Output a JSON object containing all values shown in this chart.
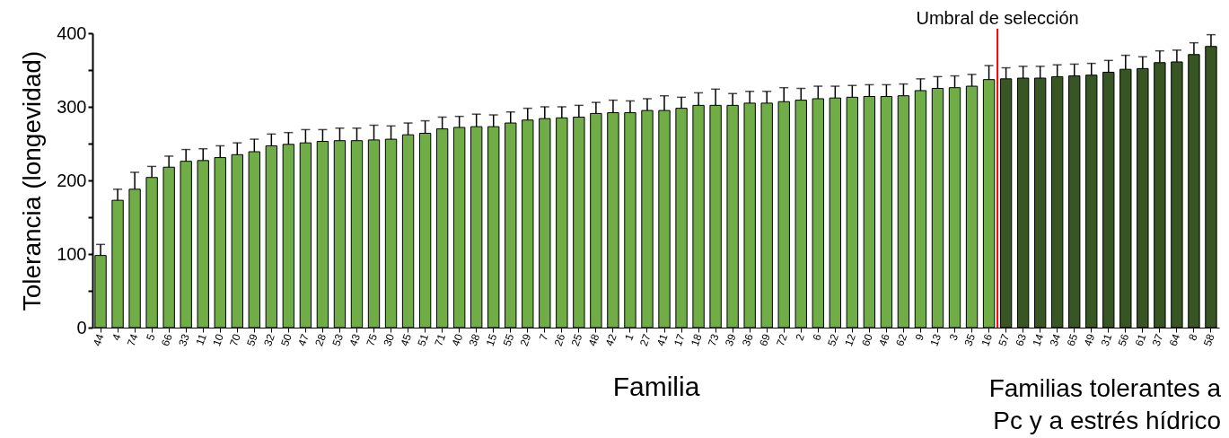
{
  "chart_data": {
    "type": "bar",
    "ylabel": "Tolerancia (longevidad)",
    "xlabel": "Familia",
    "categories": [
      "44",
      "4",
      "74",
      "5",
      "66",
      "33",
      "11",
      "10",
      "70",
      "59",
      "32",
      "50",
      "47",
      "28",
      "53",
      "43",
      "75",
      "30",
      "45",
      "51",
      "71",
      "40",
      "38",
      "15",
      "55",
      "29",
      "7",
      "26",
      "25",
      "48",
      "42",
      "1",
      "27",
      "41",
      "17",
      "18",
      "73",
      "39",
      "36",
      "69",
      "72",
      "2",
      "6",
      "52",
      "12",
      "60",
      "46",
      "62",
      "9",
      "13",
      "3",
      "35",
      "16",
      "57",
      "63",
      "14",
      "34",
      "65",
      "49",
      "31",
      "56",
      "61",
      "37",
      "64",
      "8",
      "58"
    ],
    "values": [
      98,
      173,
      188,
      204,
      218,
      226,
      227,
      231,
      235,
      239,
      247,
      249,
      251,
      253,
      254,
      254,
      255,
      256,
      262,
      264,
      270,
      272,
      273,
      273,
      278,
      282,
      284,
      285,
      286,
      291,
      292,
      292,
      295,
      295,
      298,
      302,
      302,
      302,
      305,
      305,
      307,
      309,
      311,
      312,
      313,
      314,
      314,
      315,
      322,
      325,
      326,
      328,
      337,
      338,
      339,
      339,
      341,
      342,
      343,
      347,
      351,
      352,
      360,
      361,
      371,
      382
    ],
    "errors": [
      15,
      15,
      23,
      15,
      15,
      16,
      16,
      16,
      16,
      17,
      16,
      16,
      18,
      16,
      17,
      17,
      20,
      18,
      16,
      17,
      16,
      15,
      17,
      16,
      15,
      16,
      16,
      15,
      16,
      15,
      17,
      16,
      16,
      20,
      15,
      17,
      22,
      16,
      16,
      16,
      19,
      16,
      17,
      16,
      16,
      16,
      16,
      16,
      16,
      16,
      16,
      16,
      19,
      15,
      16,
      16,
      16,
      16,
      16,
      16,
      19,
      16,
      16,
      16,
      16,
      16
    ],
    "colors": [
      "#70ad47",
      "#70ad47",
      "#70ad47",
      "#70ad47",
      "#70ad47",
      "#70ad47",
      "#70ad47",
      "#70ad47",
      "#70ad47",
      "#70ad47",
      "#70ad47",
      "#70ad47",
      "#70ad47",
      "#70ad47",
      "#70ad47",
      "#70ad47",
      "#70ad47",
      "#70ad47",
      "#70ad47",
      "#70ad47",
      "#70ad47",
      "#70ad47",
      "#70ad47",
      "#70ad47",
      "#70ad47",
      "#70ad47",
      "#70ad47",
      "#70ad47",
      "#70ad47",
      "#70ad47",
      "#70ad47",
      "#70ad47",
      "#70ad47",
      "#70ad47",
      "#70ad47",
      "#70ad47",
      "#70ad47",
      "#70ad47",
      "#70ad47",
      "#70ad47",
      "#70ad47",
      "#70ad47",
      "#70ad47",
      "#70ad47",
      "#70ad47",
      "#70ad47",
      "#70ad47",
      "#70ad47",
      "#70ad47",
      "#70ad47",
      "#70ad47",
      "#70ad47",
      "#70ad47",
      "#375623",
      "#375623",
      "#375623",
      "#375623",
      "#375623",
      "#375623",
      "#375623",
      "#375623",
      "#375623",
      "#375623",
      "#375623",
      "#375623",
      "#375623"
    ],
    "ylim": [
      0,
      400
    ],
    "yticks": [
      0,
      {
        "value": 50,
        "label": null
      },
      100,
      {
        "value": 150,
        "label": null
      },
      200,
      {
        "value": 250,
        "label": null
      },
      300,
      {
        "value": 350,
        "label": null
      },
      400
    ],
    "grid": false,
    "ref_lines": [
      {
        "axis": "x",
        "value": "16",
        "label": "Umbral de selección",
        "color": "#ff0000"
      }
    ],
    "annotations": [
      "Familias tolerantes a Pc y a estrés hídrico"
    ]
  }
}
